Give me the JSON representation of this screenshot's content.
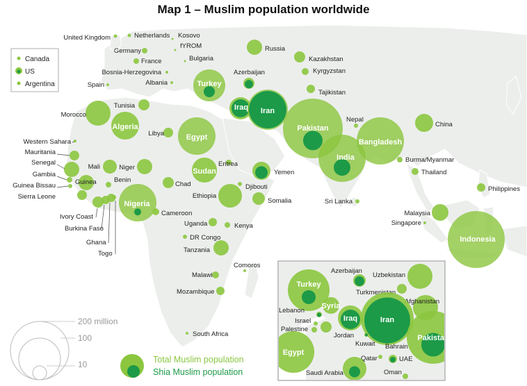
{
  "title": "Map 1 – Muslim population worldwide",
  "colors": {
    "total": "#8cc63f",
    "shia": "#1c9a48",
    "land": "#eef0ee",
    "water": "#ffffff",
    "label": "#222222"
  },
  "legend_top": {
    "items": [
      {
        "label": "Canada"
      },
      {
        "label": "US"
      },
      {
        "label": "Argentina"
      }
    ]
  },
  "scale_legend": {
    "values": [
      "200 million",
      "100",
      "10"
    ]
  },
  "legend_bottom": {
    "total_label": "Total Muslim population",
    "shia_label": "Shia Muslim population"
  },
  "countries": [
    {
      "name": "United Kingdom"
    },
    {
      "name": "Netherlands"
    },
    {
      "name": "Kosovo"
    },
    {
      "name": "fYROM"
    },
    {
      "name": "Bulgaria"
    },
    {
      "name": "Germany"
    },
    {
      "name": "France"
    },
    {
      "name": "Bosnia-Herzegovina"
    },
    {
      "name": "Albania"
    },
    {
      "name": "Spain"
    },
    {
      "name": "Russia"
    },
    {
      "name": "Kazakhstan"
    },
    {
      "name": "Azerbaijan"
    },
    {
      "name": "Kyrgyzstan"
    },
    {
      "name": "Tajikistan"
    },
    {
      "name": "Turkey"
    },
    {
      "name": "Iraq"
    },
    {
      "name": "Iran"
    },
    {
      "name": "Tunisia"
    },
    {
      "name": "Morocco"
    },
    {
      "name": "Algeria"
    },
    {
      "name": "Libya"
    },
    {
      "name": "Egypt"
    },
    {
      "name": "Pakistan"
    },
    {
      "name": "Nepal"
    },
    {
      "name": "China"
    },
    {
      "name": "Bangladesh"
    },
    {
      "name": "India"
    },
    {
      "name": "Burma/Myanmar"
    },
    {
      "name": "Thailand"
    },
    {
      "name": "Western Sahara"
    },
    {
      "name": "Mauritania"
    },
    {
      "name": "Senegal"
    },
    {
      "name": "Gambia"
    },
    {
      "name": "Guinea Bissau"
    },
    {
      "name": "Guinea"
    },
    {
      "name": "Sierra Leone"
    },
    {
      "name": "Mali"
    },
    {
      "name": "Niger"
    },
    {
      "name": "Benin"
    },
    {
      "name": "Chad"
    },
    {
      "name": "Sudan"
    },
    {
      "name": "Eritrea"
    },
    {
      "name": "Yemen"
    },
    {
      "name": "Djibouti"
    },
    {
      "name": "Ethiopia"
    },
    {
      "name": "Somalia"
    },
    {
      "name": "Nigeria"
    },
    {
      "name": "Cameroon"
    },
    {
      "name": "Sri Lanka"
    },
    {
      "name": "Philippines"
    },
    {
      "name": "Malaysia"
    },
    {
      "name": "Singapore"
    },
    {
      "name": "Indonesia"
    },
    {
      "name": "Ivory Coast"
    },
    {
      "name": "Burkina Faso"
    },
    {
      "name": "Ghana"
    },
    {
      "name": "Togo"
    },
    {
      "name": "Uganda"
    },
    {
      "name": "Kenya"
    },
    {
      "name": "DR Congo"
    },
    {
      "name": "Tanzania"
    },
    {
      "name": "Comoros"
    },
    {
      "name": "Malawi"
    },
    {
      "name": "Mozambique"
    },
    {
      "name": "South Africa"
    }
  ],
  "inset": {
    "labels": [
      "Azerbaijan",
      "Uzbekistan",
      "Turkey",
      "Turkmenistan",
      "Afghanistan",
      "Syria",
      "Lebanon",
      "Israel",
      "Palestine",
      "Iraq",
      "Iran",
      "Jordan",
      "Kuwait",
      "Bahrain",
      "Egypt",
      "Qatar",
      "UAE",
      "Saudi Arabia",
      "Oman",
      "Pakistan"
    ]
  }
}
